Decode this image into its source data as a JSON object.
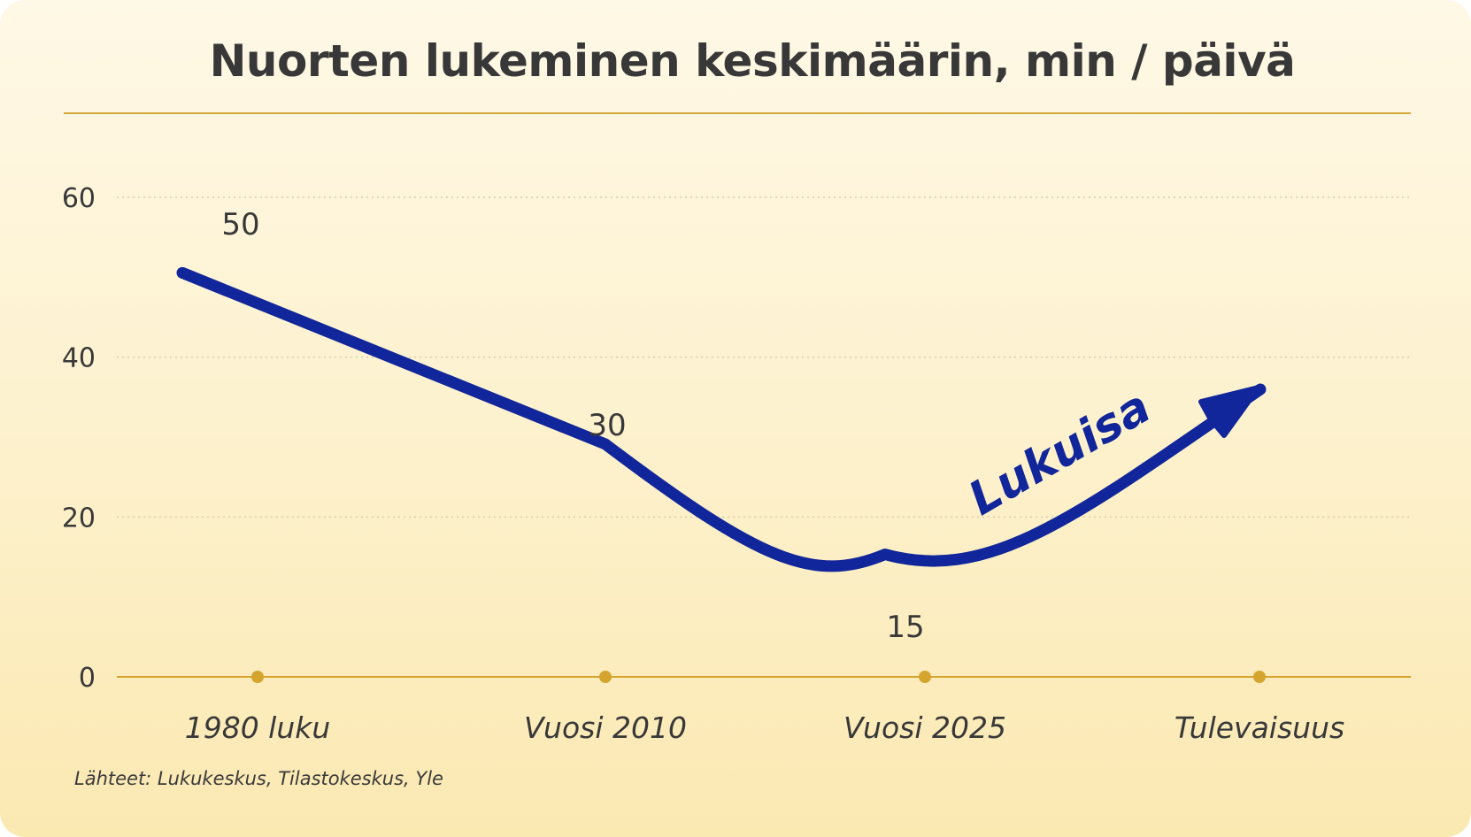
{
  "chart_data": {
    "type": "line",
    "title": "Nuorten lukeminen keskimäärin, min / päivä",
    "categories": [
      "1980 luku",
      "Vuosi 2010",
      "Vuosi 2025",
      "Tulevaisuus"
    ],
    "series": [
      {
        "values": [
          50,
          30,
          15,
          null
        ]
      }
    ],
    "data_labels": [
      "50",
      "30",
      "15"
    ],
    "yticks": [
      0,
      20,
      40,
      60
    ],
    "ylim": [
      0,
      60
    ],
    "grid": true,
    "annotation": "Lukuisa",
    "source": "Lähteet: Lukukeskus, Tilastokeskus, Yle",
    "colors": {
      "line": "#10269a",
      "axis": "#d5a42e",
      "grid": "#c9c2a8",
      "text": "#383838",
      "background": "#fdf3d3"
    }
  }
}
